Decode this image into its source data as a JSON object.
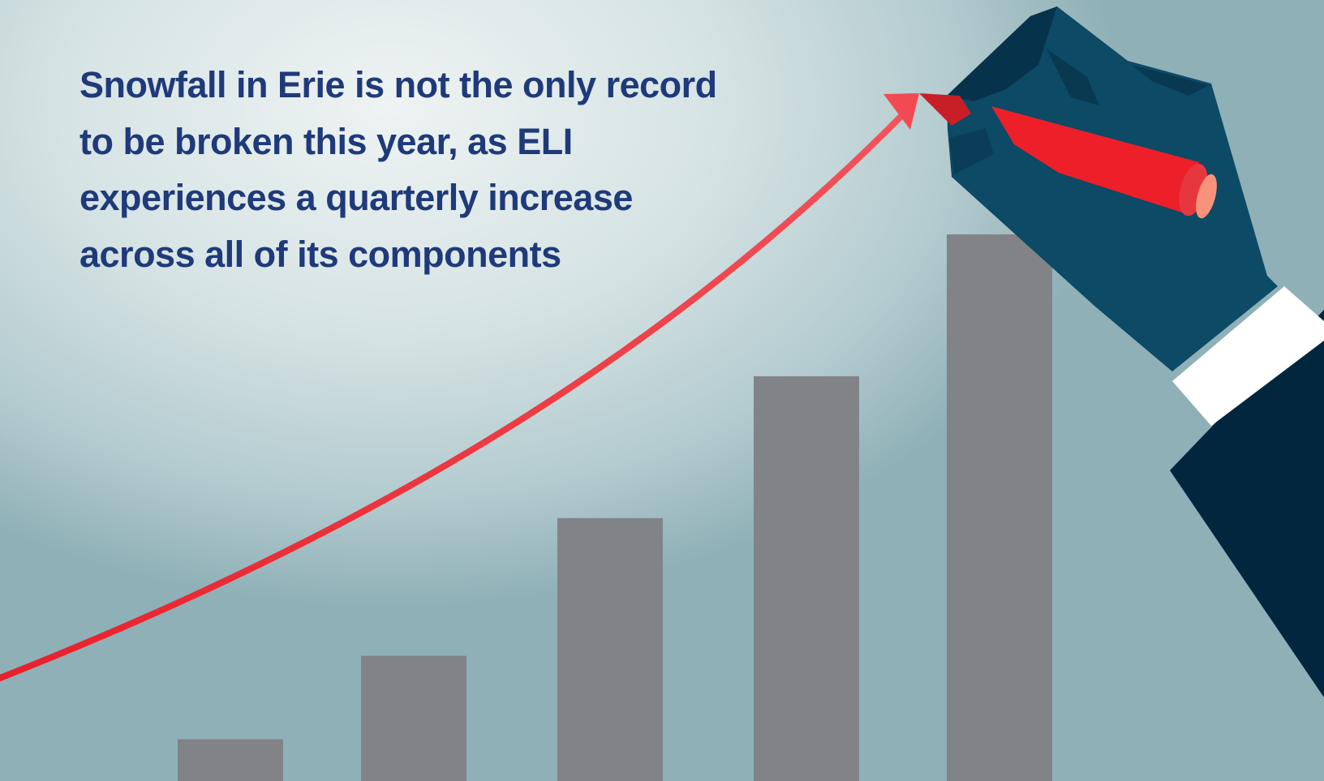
{
  "headline": {
    "text": "Snowfall in Erie is not the only record to be broken this year, as ELI experiences a quarterly increase across all of its components",
    "color": "#1f3a7a"
  },
  "chart_data": {
    "type": "bar",
    "bar_color": "#828387",
    "trend_color": "#e8212b",
    "values": [
      1,
      3,
      6.3,
      9.7,
      13.1
    ]
  },
  "illustration": {
    "hand_color": "#0c4a66",
    "sleeve_color": "#02263d",
    "cuff_color": "#ffffff",
    "marker_color": "#ed1f29",
    "marker_cap_color": "#f7937a"
  }
}
